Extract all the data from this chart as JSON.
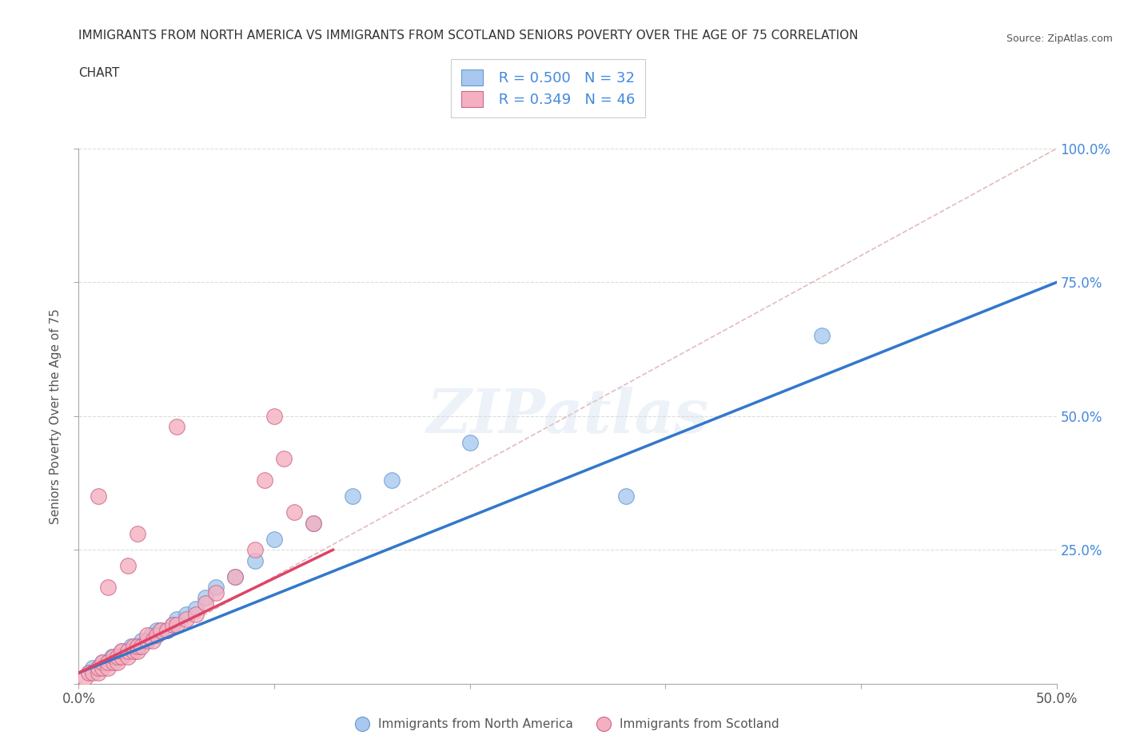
{
  "title_line1": "IMMIGRANTS FROM NORTH AMERICA VS IMMIGRANTS FROM SCOTLAND SENIORS POVERTY OVER THE AGE OF 75 CORRELATION",
  "title_line2": "CHART",
  "source": "Source: ZipAtlas.com",
  "ylabel": "Seniors Poverty Over the Age of 75",
  "watermark": "ZIPatlas",
  "legend_R_blue": "R = 0.500",
  "legend_N_blue": "N = 32",
  "legend_R_pink": "R = 0.349",
  "legend_N_pink": "N = 46",
  "color_blue": "#a8c8f0",
  "color_pink": "#f4b0c0",
  "color_blue_line": "#3377cc",
  "color_pink_line": "#dd4466",
  "color_blue_edge": "#6699cc",
  "color_pink_edge": "#cc6688",
  "xlim": [
    0.0,
    0.5
  ],
  "ylim": [
    0.0,
    1.0
  ],
  "xtick_positions": [
    0.0,
    0.1,
    0.2,
    0.3,
    0.4,
    0.5
  ],
  "xtick_labels": [
    "0.0%",
    "",
    "",
    "",
    "",
    "50.0%"
  ],
  "ytick_positions": [
    0.0,
    0.25,
    0.5,
    0.75,
    1.0
  ],
  "ytick_labels": [
    "",
    "25.0%",
    "50.0%",
    "75.0%",
    "100.0%"
  ],
  "blue_scatter_x": [
    0.005,
    0.007,
    0.01,
    0.012,
    0.015,
    0.017,
    0.02,
    0.022,
    0.025,
    0.027,
    0.03,
    0.032,
    0.035,
    0.037,
    0.04,
    0.042,
    0.045,
    0.048,
    0.05,
    0.055,
    0.06,
    0.065,
    0.07,
    0.08,
    0.09,
    0.1,
    0.12,
    0.14,
    0.16,
    0.2,
    0.28,
    0.38
  ],
  "blue_scatter_y": [
    0.02,
    0.03,
    0.03,
    0.04,
    0.04,
    0.05,
    0.05,
    0.06,
    0.06,
    0.07,
    0.07,
    0.08,
    0.08,
    0.09,
    0.1,
    0.1,
    0.1,
    0.11,
    0.12,
    0.13,
    0.14,
    0.16,
    0.18,
    0.2,
    0.23,
    0.27,
    0.3,
    0.35,
    0.38,
    0.45,
    0.35,
    0.65
  ],
  "pink_scatter_x": [
    0.003,
    0.005,
    0.007,
    0.01,
    0.01,
    0.012,
    0.012,
    0.015,
    0.015,
    0.018,
    0.018,
    0.02,
    0.02,
    0.022,
    0.022,
    0.025,
    0.025,
    0.028,
    0.028,
    0.03,
    0.03,
    0.032,
    0.035,
    0.035,
    0.038,
    0.04,
    0.042,
    0.045,
    0.048,
    0.05,
    0.055,
    0.06,
    0.065,
    0.07,
    0.08,
    0.09,
    0.095,
    0.1,
    0.105,
    0.11,
    0.12,
    0.05,
    0.03,
    0.025,
    0.015,
    0.01
  ],
  "pink_scatter_y": [
    0.01,
    0.02,
    0.02,
    0.02,
    0.03,
    0.03,
    0.04,
    0.03,
    0.04,
    0.04,
    0.05,
    0.04,
    0.05,
    0.05,
    0.06,
    0.05,
    0.06,
    0.06,
    0.07,
    0.06,
    0.07,
    0.07,
    0.08,
    0.09,
    0.08,
    0.09,
    0.1,
    0.1,
    0.11,
    0.11,
    0.12,
    0.13,
    0.15,
    0.17,
    0.2,
    0.25,
    0.38,
    0.5,
    0.42,
    0.32,
    0.3,
    0.48,
    0.28,
    0.22,
    0.18,
    0.35
  ],
  "blue_trendline_x": [
    0.0,
    0.5
  ],
  "blue_trendline_y": [
    0.02,
    0.75
  ],
  "pink_trendline_x": [
    0.0,
    0.13
  ],
  "pink_trendline_y": [
    0.02,
    0.25
  ],
  "dashed_line_x": [
    0.0,
    0.5
  ],
  "dashed_line_y": [
    0.0,
    1.0
  ],
  "dashed_color": "#ddaaaa",
  "bg_color": "#ffffff",
  "grid_color": "#dddddd",
  "title_color": "#333333",
  "axis_label_color": "#555555",
  "legend_text_color": "#4488dd",
  "watermark_color": "#ccdcee",
  "watermark_alpha": 0.35
}
